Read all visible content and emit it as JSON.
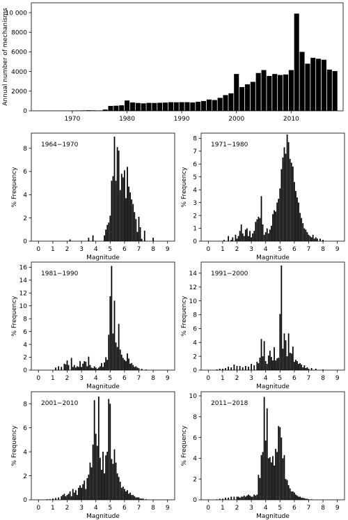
{
  "chart_data": [
    {
      "type": "bar",
      "title": "",
      "xlabel": "",
      "ylabel": "Annual number of mechanisms",
      "xlim": [
        1962.5,
        2019.5
      ],
      "ylim": [
        0,
        11000
      ],
      "xticks": [
        1970,
        1980,
        1990,
        2000,
        2010
      ],
      "yticks": [
        0,
        2000,
        4000,
        6000,
        8000,
        10000
      ],
      "ytick_labels": [
        "0",
        "2000",
        "4000",
        "6000",
        "8000",
        "10 000"
      ],
      "x": [
        1964,
        1965,
        1966,
        1967,
        1968,
        1969,
        1970,
        1971,
        1972,
        1973,
        1974,
        1975,
        1976,
        1977,
        1978,
        1979,
        1980,
        1981,
        1982,
        1983,
        1984,
        1985,
        1986,
        1987,
        1988,
        1989,
        1990,
        1991,
        1992,
        1993,
        1994,
        1995,
        1996,
        1997,
        1998,
        1999,
        2000,
        2001,
        2002,
        2003,
        2004,
        2005,
        2006,
        2007,
        2008,
        2009,
        2010,
        2011,
        2012,
        2013,
        2014,
        2015,
        2016,
        2017,
        2018
      ],
      "values": [
        5,
        10,
        15,
        20,
        20,
        25,
        30,
        40,
        45,
        60,
        50,
        40,
        130,
        500,
        520,
        560,
        1050,
        850,
        800,
        760,
        810,
        800,
        820,
        840,
        880,
        870,
        880,
        880,
        850,
        920,
        1000,
        1150,
        1100,
        1320,
        1600,
        1780,
        3750,
        2420,
        2700,
        2950,
        3850,
        4150,
        3550,
        3750,
        3650,
        3700,
        4150,
        9900,
        6000,
        4800,
        5400,
        5300,
        5200,
        4200,
        4050
      ],
      "grid": false
    },
    {
      "type": "bar",
      "label": "1964−1970",
      "xlabel": "Magnitude",
      "ylabel": "% Frequency",
      "xlim": [
        -0.5,
        9.5
      ],
      "ylim": [
        0,
        9.3
      ],
      "xticks": [
        0,
        1,
        2,
        3,
        4,
        5,
        6,
        7,
        8,
        9
      ],
      "yticks": [
        0,
        2,
        4,
        6,
        8
      ],
      "x": [
        2.2,
        3.5,
        3.8,
        4.6,
        4.7,
        4.8,
        4.9,
        5.0,
        5.1,
        5.2,
        5.3,
        5.4,
        5.5,
        5.6,
        5.7,
        5.8,
        5.9,
        6.0,
        6.1,
        6.2,
        6.3,
        6.4,
        6.5,
        6.6,
        6.7,
        6.8,
        6.9,
        7.0,
        7.1,
        7.2,
        7.4,
        8.0
      ],
      "values": [
        0.15,
        0.3,
        0.5,
        0.5,
        1.0,
        1.4,
        1.6,
        2.2,
        5.2,
        5.6,
        9.0,
        5.2,
        8.1,
        7.8,
        4.4,
        5.8,
        5.5,
        6.1,
        3.7,
        6.4,
        4.7,
        4.2,
        3.6,
        3.2,
        2.5,
        1.9,
        0.8,
        2.1,
        1.2,
        0.2,
        0.9,
        0.3
      ]
    },
    {
      "type": "bar",
      "label": "1971−1980",
      "xlabel": "Magnitude",
      "ylabel": "% Frequency",
      "xlim": [
        -0.5,
        9.5
      ],
      "ylim": [
        0,
        8.4
      ],
      "xticks": [
        0,
        1,
        2,
        3,
        4,
        5,
        6,
        7,
        8,
        9
      ],
      "yticks": [
        0,
        1,
        2,
        3,
        4,
        5,
        6,
        7,
        8
      ],
      "x": [
        1.1,
        1.4,
        1.6,
        1.7,
        1.9,
        2.0,
        2.1,
        2.2,
        2.3,
        2.4,
        2.5,
        2.6,
        2.7,
        2.8,
        2.9,
        3.0,
        3.1,
        3.2,
        3.3,
        3.4,
        3.5,
        3.6,
        3.7,
        3.8,
        3.9,
        4.0,
        4.1,
        4.2,
        4.3,
        4.4,
        4.5,
        4.6,
        4.7,
        4.8,
        4.9,
        5.0,
        5.1,
        5.2,
        5.3,
        5.4,
        5.5,
        5.6,
        5.7,
        5.8,
        5.9,
        6.0,
        6.1,
        6.2,
        6.3,
        6.4,
        6.5,
        6.6,
        6.7,
        6.8,
        6.9,
        7.0,
        7.1,
        7.2,
        7.3,
        7.4,
        7.5,
        7.6,
        7.8,
        8.0
      ],
      "values": [
        0.1,
        0.4,
        0.1,
        0.3,
        0.5,
        0.2,
        0.4,
        0.8,
        1.3,
        0.6,
        0.4,
        0.9,
        1.0,
        0.4,
        0.8,
        0.3,
        0.6,
        0.8,
        1.5,
        1.7,
        1.9,
        1.8,
        3.5,
        1.3,
        0.5,
        0.7,
        1.0,
        0.6,
        0.9,
        1.2,
        2.1,
        2.4,
        2.3,
        3.0,
        3.3,
        4.1,
        5.6,
        6.5,
        7.3,
        6.8,
        8.3,
        7.7,
        6.4,
        6.1,
        5.8,
        4.6,
        3.9,
        3.4,
        3.0,
        2.2,
        1.8,
        1.4,
        1.0,
        0.9,
        0.7,
        0.5,
        0.4,
        0.3,
        0.5,
        0.2,
        0.3,
        0.2,
        0.2,
        0.1
      ]
    },
    {
      "type": "bar",
      "label": "1981−1990",
      "xlabel": "Magnitude",
      "ylabel": "% Frequency",
      "xlim": [
        -0.5,
        9.5
      ],
      "ylim": [
        0,
        16.8
      ],
      "xticks": [
        0,
        1,
        2,
        3,
        4,
        5,
        6,
        7,
        8,
        9
      ],
      "yticks": [
        0,
        2,
        4,
        6,
        8,
        10,
        12,
        14,
        16
      ],
      "x": [
        1.2,
        1.4,
        1.6,
        1.8,
        1.9,
        2.0,
        2.1,
        2.3,
        2.4,
        2.5,
        2.6,
        2.7,
        2.8,
        2.9,
        3.0,
        3.1,
        3.2,
        3.3,
        3.4,
        3.5,
        3.6,
        3.7,
        3.8,
        3.9,
        4.0,
        4.1,
        4.2,
        4.3,
        4.4,
        4.5,
        4.6,
        4.7,
        4.8,
        4.9,
        5.0,
        5.1,
        5.2,
        5.3,
        5.4,
        5.5,
        5.6,
        5.7,
        5.8,
        5.9,
        6.0,
        6.1,
        6.2,
        6.3,
        6.4,
        6.5,
        6.6,
        6.7,
        6.8,
        6.9,
        7.0,
        7.2,
        7.5
      ],
      "values": [
        0.4,
        0.6,
        0.5,
        1.0,
        0.9,
        1.5,
        0.8,
        1.9,
        0.5,
        0.8,
        0.4,
        0.6,
        0.5,
        1.4,
        0.5,
        1.0,
        1.4,
        1.3,
        0.6,
        2.1,
        0.8,
        0.4,
        0.3,
        0.6,
        0.4,
        0.2,
        0.4,
        0.6,
        1.1,
        0.5,
        1.2,
        2.0,
        1.6,
        5.5,
        11.5,
        16.2,
        5.7,
        10.8,
        4.3,
        3.6,
        7.2,
        3.2,
        2.4,
        1.9,
        1.6,
        1.4,
        2.6,
        1.8,
        1.0,
        1.1,
        0.8,
        0.5,
        0.6,
        0.4,
        0.3,
        0.2,
        0.1
      ]
    },
    {
      "type": "bar",
      "label": "1991−2000",
      "xlabel": "Magnitude",
      "ylabel": "% Frequency",
      "xlim": [
        -0.5,
        9.5
      ],
      "ylim": [
        0,
        15.6
      ],
      "xticks": [
        0,
        1,
        2,
        3,
        4,
        5,
        6,
        7,
        8,
        9
      ],
      "yticks": [
        0,
        2,
        4,
        6,
        8,
        10,
        12,
        14
      ],
      "x": [
        0.6,
        0.8,
        1.0,
        1.2,
        1.4,
        1.6,
        1.8,
        2.0,
        2.2,
        2.4,
        2.6,
        2.8,
        3.0,
        3.2,
        3.4,
        3.5,
        3.6,
        3.7,
        3.8,
        3.9,
        4.0,
        4.1,
        4.2,
        4.3,
        4.4,
        4.5,
        4.6,
        4.7,
        4.8,
        4.9,
        5.0,
        5.1,
        5.2,
        5.3,
        5.4,
        5.5,
        5.6,
        5.7,
        5.8,
        5.9,
        6.0,
        6.1,
        6.2,
        6.3,
        6.4,
        6.5,
        6.6,
        6.7,
        6.8,
        6.9,
        7.0,
        7.2,
        7.5,
        8.0
      ],
      "values": [
        0.1,
        0.2,
        0.2,
        0.3,
        0.5,
        0.4,
        0.8,
        0.6,
        0.6,
        0.4,
        0.6,
        0.5,
        0.9,
        0.7,
        1.2,
        1.0,
        1.8,
        4.5,
        2.0,
        4.2,
        1.3,
        0.9,
        2.1,
        2.8,
        1.9,
        1.4,
        3.3,
        1.4,
        1.7,
        1.8,
        8.1,
        15.1,
        3.1,
        5.3,
        4.3,
        2.0,
        5.3,
        2.5,
        2.4,
        3.4,
        1.2,
        1.5,
        1.3,
        0.9,
        1.0,
        0.8,
        0.4,
        0.7,
        0.3,
        0.4,
        0.2,
        0.3,
        0.2,
        0.1
      ]
    },
    {
      "type": "bar",
      "label": "2001−2010",
      "xlabel": "Magnitude",
      "ylabel": "% Frequency",
      "xlim": [
        -0.5,
        9.5
      ],
      "ylim": [
        0,
        9.0
      ],
      "xticks": [
        0,
        1,
        2,
        3,
        4,
        5,
        6,
        7,
        8,
        9
      ],
      "yticks": [
        0,
        2,
        4,
        6,
        8
      ],
      "x": [
        0.6,
        0.8,
        1.0,
        1.2,
        1.4,
        1.6,
        1.7,
        1.8,
        1.9,
        2.0,
        2.1,
        2.2,
        2.3,
        2.4,
        2.5,
        2.6,
        2.7,
        2.8,
        2.9,
        3.0,
        3.1,
        3.2,
        3.3,
        3.4,
        3.5,
        3.6,
        3.7,
        3.8,
        3.9,
        4.0,
        4.1,
        4.2,
        4.3,
        4.4,
        4.5,
        4.6,
        4.7,
        4.8,
        4.9,
        5.0,
        5.1,
        5.2,
        5.3,
        5.4,
        5.5,
        5.6,
        5.7,
        5.8,
        5.9,
        6.0,
        6.1,
        6.2,
        6.3,
        6.4,
        6.5,
        6.6,
        6.7,
        6.8,
        6.9,
        7.0,
        7.1,
        7.2,
        7.3,
        7.5
      ],
      "values": [
        0.05,
        0.05,
        0.1,
        0.15,
        0.2,
        0.3,
        0.4,
        0.5,
        0.3,
        0.4,
        0.5,
        0.7,
        0.3,
        0.9,
        0.6,
        0.8,
        0.4,
        1.0,
        1.2,
        1.0,
        1.3,
        1.6,
        0.9,
        1.8,
        2.1,
        3.1,
        2.7,
        4.6,
        8.3,
        5.5,
        4.5,
        8.6,
        3.5,
        2.5,
        4.0,
        2.2,
        3.7,
        4.0,
        8.4,
        8.0,
        3.4,
        3.0,
        4.2,
        3.1,
        2.2,
        1.9,
        1.5,
        1.0,
        1.1,
        0.9,
        0.7,
        0.8,
        0.5,
        0.6,
        0.4,
        0.4,
        0.3,
        0.2,
        0.2,
        0.2,
        0.1,
        0.1,
        0.1,
        0.05
      ]
    },
    {
      "type": "bar",
      "label": "2011−2018",
      "xlabel": "Magnitude",
      "ylabel": "% Frequency",
      "xlim": [
        -0.5,
        9.5
      ],
      "ylim": [
        0,
        10.4
      ],
      "xticks": [
        0,
        1,
        2,
        3,
        4,
        5,
        6,
        7,
        8,
        9
      ],
      "yticks": [
        0,
        2,
        4,
        6,
        8,
        10
      ],
      "x": [
        0.6,
        0.8,
        1.0,
        1.2,
        1.4,
        1.6,
        1.8,
        2.0,
        2.1,
        2.2,
        2.3,
        2.4,
        2.5,
        2.6,
        2.7,
        2.8,
        2.9,
        3.0,
        3.1,
        3.2,
        3.3,
        3.4,
        3.5,
        3.6,
        3.7,
        3.8,
        3.9,
        4.0,
        4.1,
        4.2,
        4.3,
        4.4,
        4.5,
        4.6,
        4.7,
        4.8,
        4.9,
        5.0,
        5.1,
        5.2,
        5.3,
        5.4,
        5.5,
        5.6,
        5.7,
        5.8,
        5.9,
        6.0,
        6.1,
        6.2,
        6.3,
        6.4,
        6.5,
        6.6,
        6.7,
        6.8,
        6.9,
        7.0,
        7.2
      ],
      "values": [
        0.05,
        0.1,
        0.1,
        0.2,
        0.2,
        0.3,
        0.3,
        0.3,
        0.3,
        0.2,
        0.3,
        0.3,
        0.4,
        0.3,
        0.4,
        0.5,
        0.4,
        0.3,
        0.3,
        0.5,
        0.4,
        0.5,
        2.4,
        2.1,
        4.3,
        4.6,
        9.9,
        5.7,
        8.8,
        4.0,
        4.1,
        3.6,
        4.2,
        3.3,
        4.9,
        4.6,
        7.1,
        7.0,
        6.0,
        4.0,
        4.3,
        2.0,
        1.9,
        1.4,
        1.1,
        0.8,
        0.8,
        0.7,
        0.5,
        0.4,
        0.3,
        0.3,
        0.2,
        0.2,
        0.15,
        0.1,
        0.1,
        0.05,
        0.05
      ]
    }
  ]
}
